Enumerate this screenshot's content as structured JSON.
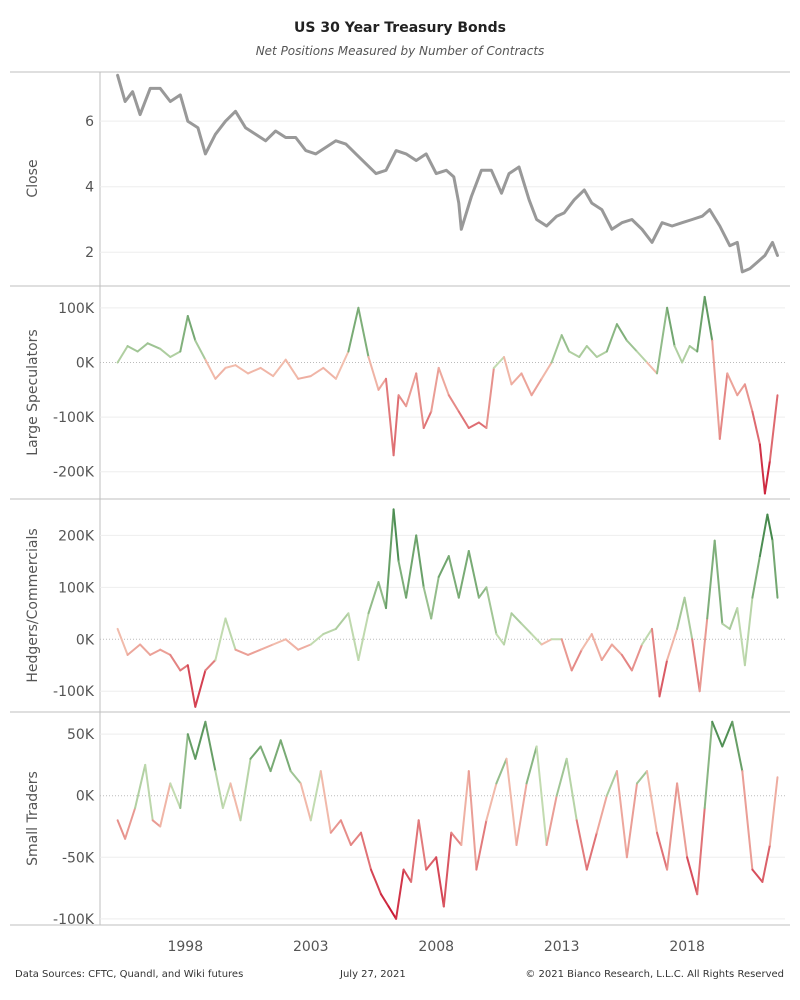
{
  "title": "US 30 Year Treasury Bonds",
  "subtitle": "Net Positions Measured by Number of Contracts",
  "footer": {
    "sources": "Data Sources: CFTC, Quandl, and Wiki futures",
    "date": "July 27, 2021",
    "copyright": "© 2021 Bianco Research, L.L.C. All Rights Reserved"
  },
  "colors": {
    "close_line": "#999999",
    "positive_light": "#c2dbb0",
    "positive_dark": "#2f7a3a",
    "negative_light": "#f3c2b0",
    "negative_dark": "#c8102e",
    "zero_line": "#bbbbbb",
    "grid": "#eeeeee",
    "border": "#bfbfbf"
  },
  "chart_data": {
    "type": "line",
    "x_tick_labels": [
      "1998",
      "2003",
      "2008",
      "2013",
      "2018"
    ],
    "x_ticks": [
      1998,
      2003,
      2008,
      2013,
      2018
    ],
    "xlim": [
      1994.6,
      2021.9
    ],
    "panels": [
      {
        "ylabel": "Close",
        "coloring": "single",
        "ylim": [
          1,
          7.5
        ],
        "y_ticks": [
          2,
          4,
          6
        ],
        "y_tick_labels": [
          "2",
          "4",
          "6"
        ],
        "x": [
          1995.3,
          1995.6,
          1995.9,
          1996.2,
          1996.6,
          1997.0,
          1997.4,
          1997.8,
          1998.1,
          1998.5,
          1998.8,
          1999.2,
          1999.6,
          2000.0,
          2000.4,
          2000.8,
          2001.2,
          2001.6,
          2002.0,
          2002.4,
          2002.8,
          2003.2,
          2003.6,
          2004.0,
          2004.4,
          2004.8,
          2005.2,
          2005.6,
          2006.0,
          2006.4,
          2006.8,
          2007.2,
          2007.6,
          2008.0,
          2008.4,
          2008.7,
          2008.9,
          2009.0,
          2009.4,
          2009.8,
          2010.2,
          2010.6,
          2010.9,
          2011.3,
          2011.7,
          2012.0,
          2012.4,
          2012.8,
          2013.1,
          2013.5,
          2013.9,
          2014.2,
          2014.6,
          2015.0,
          2015.4,
          2015.8,
          2016.2,
          2016.6,
          2017.0,
          2017.4,
          2017.8,
          2018.2,
          2018.6,
          2018.9,
          2019.3,
          2019.7,
          2020.0,
          2020.2,
          2020.5,
          2020.8,
          2021.1,
          2021.4,
          2021.6
        ],
        "y": [
          7.4,
          6.6,
          6.9,
          6.2,
          7.0,
          7.0,
          6.6,
          6.8,
          6.0,
          5.8,
          5.0,
          5.6,
          6.0,
          6.3,
          5.8,
          5.6,
          5.4,
          5.7,
          5.5,
          5.5,
          5.1,
          5.0,
          5.2,
          5.4,
          5.3,
          5.0,
          4.7,
          4.4,
          4.5,
          5.1,
          5.0,
          4.8,
          5.0,
          4.4,
          4.5,
          4.3,
          3.5,
          2.7,
          3.7,
          4.5,
          4.5,
          3.8,
          4.4,
          4.6,
          3.6,
          3.0,
          2.8,
          3.1,
          3.2,
          3.6,
          3.9,
          3.5,
          3.3,
          2.7,
          2.9,
          3.0,
          2.7,
          2.3,
          2.9,
          2.8,
          2.9,
          3.0,
          3.1,
          3.3,
          2.8,
          2.2,
          2.3,
          1.4,
          1.5,
          1.7,
          1.9,
          2.3,
          1.9
        ]
      },
      {
        "ylabel": "Large Speculators",
        "coloring": "diverging",
        "ylim": [
          -250000,
          140000
        ],
        "color_range": [
          -240000,
          120000
        ],
        "y_ticks": [
          100000,
          0,
          -100000,
          -200000
        ],
        "y_tick_labels": [
          "100K",
          "0K",
          "-100K",
          "-200K"
        ],
        "x": [
          1995.3,
          1995.7,
          1996.1,
          1996.5,
          1997.0,
          1997.4,
          1997.8,
          1998.1,
          1998.4,
          1998.8,
          1999.2,
          1999.6,
          2000.0,
          2000.5,
          2001.0,
          2001.5,
          2002.0,
          2002.5,
          2003.0,
          2003.5,
          2004.0,
          2004.5,
          2004.9,
          2005.3,
          2005.7,
          2006.0,
          2006.3,
          2006.5,
          2006.8,
          2007.2,
          2007.5,
          2007.8,
          2008.1,
          2008.5,
          2008.9,
          2009.3,
          2009.7,
          2010.0,
          2010.3,
          2010.7,
          2011.0,
          2011.4,
          2011.8,
          2012.2,
          2012.6,
          2013.0,
          2013.3,
          2013.7,
          2014.0,
          2014.4,
          2014.8,
          2015.2,
          2015.6,
          2016.0,
          2016.4,
          2016.8,
          2017.2,
          2017.5,
          2017.8,
          2018.1,
          2018.4,
          2018.7,
          2019.0,
          2019.3,
          2019.6,
          2020.0,
          2020.3,
          2020.6,
          2020.9,
          2021.1,
          2021.3,
          2021.6
        ],
        "y": [
          0,
          30000,
          20000,
          35000,
          25000,
          10000,
          20000,
          85000,
          40000,
          5000,
          -30000,
          -10000,
          -5000,
          -20000,
          -10000,
          -25000,
          5000,
          -30000,
          -25000,
          -10000,
          -30000,
          20000,
          100000,
          10000,
          -50000,
          -30000,
          -170000,
          -60000,
          -80000,
          -20000,
          -120000,
          -90000,
          -10000,
          -60000,
          -90000,
          -120000,
          -110000,
          -120000,
          -10000,
          10000,
          -40000,
          -20000,
          -60000,
          -30000,
          0,
          50000,
          20000,
          10000,
          30000,
          10000,
          20000,
          70000,
          40000,
          20000,
          0,
          -20000,
          100000,
          30000,
          0,
          30000,
          20000,
          120000,
          40000,
          -140000,
          -20000,
          -60000,
          -40000,
          -90000,
          -150000,
          -240000,
          -180000,
          -60000
        ]
      },
      {
        "ylabel": "Hedgers/Commercials",
        "coloring": "diverging",
        "ylim": [
          -140000,
          270000
        ],
        "color_range": [
          -130000,
          250000
        ],
        "y_ticks": [
          200000,
          100000,
          0,
          -100000
        ],
        "y_tick_labels": [
          "200K",
          "100K",
          "0K",
          "-100K"
        ],
        "x": [
          1995.3,
          1995.7,
          1996.2,
          1996.6,
          1997.0,
          1997.4,
          1997.8,
          1998.1,
          1998.4,
          1998.8,
          1999.2,
          1999.6,
          2000.0,
          2000.5,
          2001.0,
          2001.5,
          2002.0,
          2002.5,
          2003.0,
          2003.5,
          2004.0,
          2004.5,
          2004.9,
          2005.3,
          2005.7,
          2006.0,
          2006.3,
          2006.5,
          2006.8,
          2007.2,
          2007.5,
          2007.8,
          2008.1,
          2008.5,
          2008.9,
          2009.3,
          2009.7,
          2010.0,
          2010.4,
          2010.7,
          2011.0,
          2011.4,
          2011.8,
          2012.2,
          2012.6,
          2013.0,
          2013.4,
          2013.8,
          2014.2,
          2014.6,
          2015.0,
          2015.4,
          2015.8,
          2016.2,
          2016.6,
          2016.9,
          2017.2,
          2017.6,
          2017.9,
          2018.2,
          2018.5,
          2018.8,
          2019.1,
          2019.4,
          2019.7,
          2020.0,
          2020.3,
          2020.6,
          2020.9,
          2021.2,
          2021.4,
          2021.6
        ],
        "y": [
          20000,
          -30000,
          -10000,
          -30000,
          -20000,
          -30000,
          -60000,
          -50000,
          -130000,
          -60000,
          -40000,
          40000,
          -20000,
          -30000,
          -20000,
          -10000,
          0,
          -20000,
          -10000,
          10000,
          20000,
          50000,
          -40000,
          50000,
          110000,
          60000,
          250000,
          150000,
          80000,
          200000,
          100000,
          40000,
          120000,
          160000,
          80000,
          170000,
          80000,
          100000,
          10000,
          -10000,
          50000,
          30000,
          10000,
          -10000,
          0,
          0,
          -60000,
          -20000,
          10000,
          -40000,
          -10000,
          -30000,
          -60000,
          -10000,
          20000,
          -110000,
          -40000,
          20000,
          80000,
          0,
          -100000,
          40000,
          190000,
          30000,
          20000,
          60000,
          -50000,
          80000,
          160000,
          240000,
          190000,
          80000
        ]
      },
      {
        "ylabel": "Small Traders",
        "coloring": "diverging",
        "ylim": [
          -105000,
          68000
        ],
        "color_range": [
          -100000,
          65000
        ],
        "y_ticks": [
          50000,
          0,
          -50000,
          -100000
        ],
        "y_tick_labels": [
          "50K",
          "0K",
          "-50K",
          "-100K"
        ],
        "x": [
          1995.3,
          1995.6,
          1996.0,
          1996.4,
          1996.7,
          1997.0,
          1997.4,
          1997.8,
          1998.1,
          1998.4,
          1998.8,
          1999.2,
          1999.5,
          1999.8,
          2000.2,
          2000.6,
          2001.0,
          2001.4,
          2001.8,
          2002.2,
          2002.6,
          2003.0,
          2003.4,
          2003.8,
          2004.2,
          2004.6,
          2005.0,
          2005.4,
          2005.8,
          2006.1,
          2006.4,
          2006.7,
          2007.0,
          2007.3,
          2007.6,
          2008.0,
          2008.3,
          2008.6,
          2009.0,
          2009.3,
          2009.6,
          2010.0,
          2010.4,
          2010.8,
          2011.2,
          2011.6,
          2012.0,
          2012.4,
          2012.8,
          2013.2,
          2013.6,
          2014.0,
          2014.4,
          2014.8,
          2015.2,
          2015.6,
          2016.0,
          2016.4,
          2016.8,
          2017.2,
          2017.6,
          2018.0,
          2018.4,
          2018.7,
          2019.0,
          2019.4,
          2019.8,
          2020.2,
          2020.6,
          2021.0,
          2021.3,
          2021.6
        ],
        "y": [
          -20000,
          -35000,
          -10000,
          25000,
          -20000,
          -25000,
          10000,
          -10000,
          50000,
          30000,
          60000,
          20000,
          -10000,
          10000,
          -20000,
          30000,
          40000,
          20000,
          45000,
          20000,
          10000,
          -20000,
          20000,
          -30000,
          -20000,
          -40000,
          -30000,
          -60000,
          -80000,
          -90000,
          -100000,
          -60000,
          -70000,
          -20000,
          -60000,
          -50000,
          -90000,
          -30000,
          -40000,
          20000,
          -60000,
          -20000,
          10000,
          30000,
          -40000,
          10000,
          40000,
          -40000,
          0,
          30000,
          -20000,
          -60000,
          -30000,
          0,
          20000,
          -50000,
          10000,
          20000,
          -30000,
          -60000,
          10000,
          -50000,
          -80000,
          -10000,
          60000,
          40000,
          60000,
          20000,
          -60000,
          -70000,
          -40000,
          15000
        ]
      }
    ]
  }
}
